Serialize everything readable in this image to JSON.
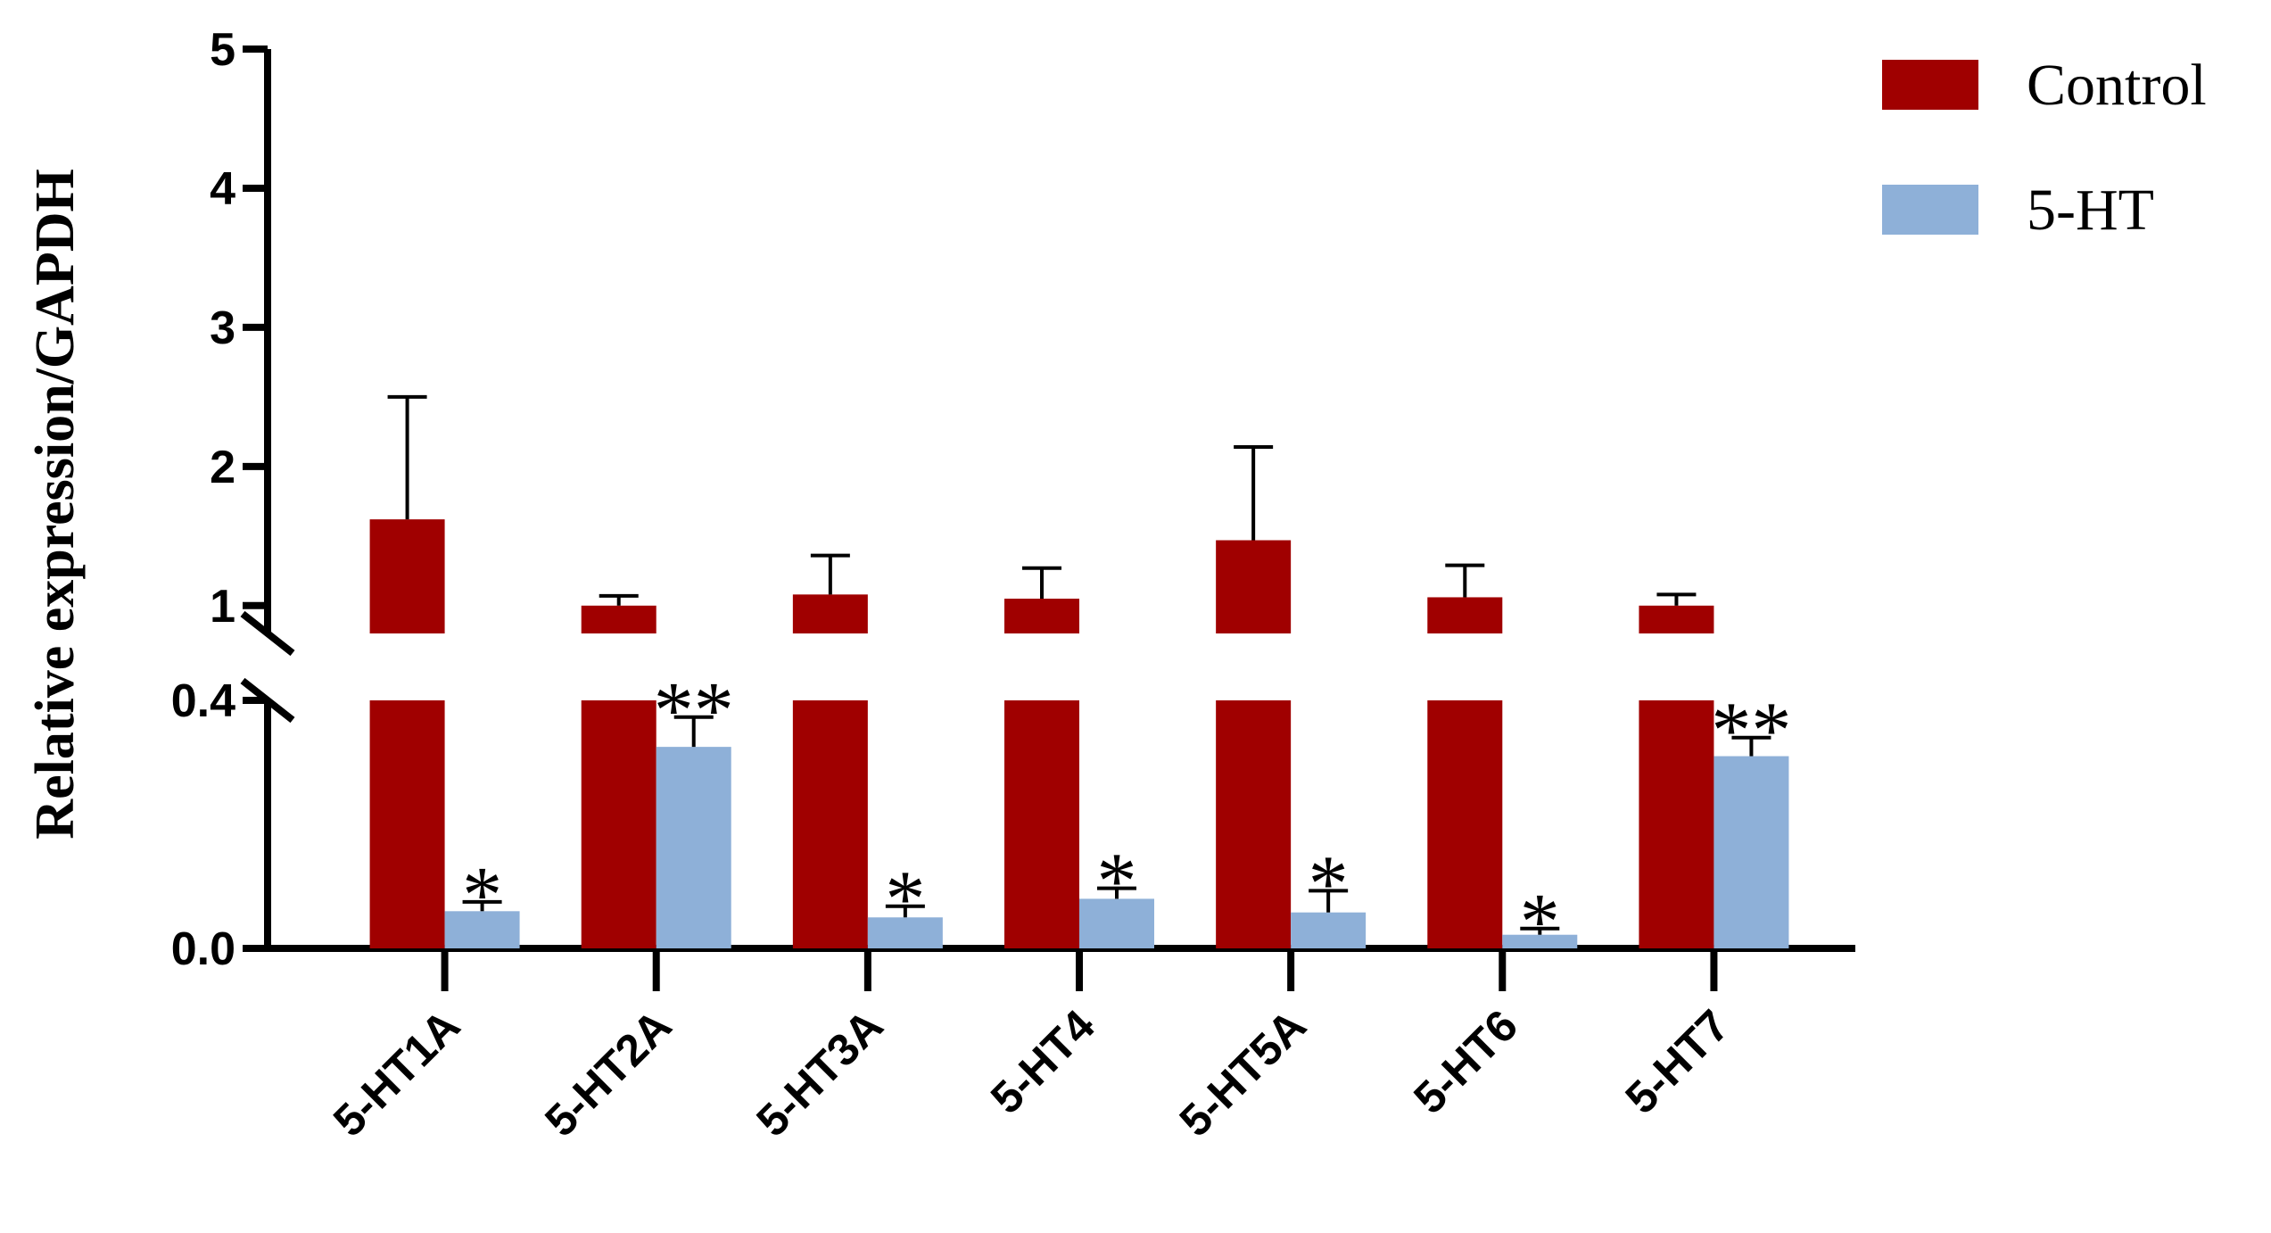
{
  "chart_data": {
    "type": "bar",
    "ylabel": "Relative expression/GAPDH",
    "axis_break": {
      "lower_range": [
        0,
        0.4
      ],
      "upper_range": [
        0.8,
        5
      ]
    },
    "lower_ticks": [
      "0.0",
      "0.4"
    ],
    "upper_ticks": [
      "1",
      "2",
      "3",
      "4",
      "5"
    ],
    "categories": [
      "5-HT1A",
      "5-HT2A",
      "5-HT3A",
      "5-HT4",
      "5-HT5A",
      "5-HT6",
      "5-HT7"
    ],
    "series": [
      {
        "name": "Control",
        "color": "#a00000",
        "values": [
          1.62,
          1.0,
          1.08,
          1.05,
          1.47,
          1.06,
          1.0
        ],
        "errors": [
          0.88,
          0.07,
          0.28,
          0.22,
          0.67,
          0.23,
          0.08
        ]
      },
      {
        "name": "5-HT",
        "color": "#8eb0d8",
        "values": [
          0.06,
          0.325,
          0.05,
          0.08,
          0.058,
          0.022,
          0.31
        ],
        "errors": [
          0.015,
          0.048,
          0.018,
          0.017,
          0.035,
          0.01,
          0.03
        ]
      }
    ],
    "significance": [
      "*",
      "**",
      "*",
      "*",
      "*",
      "*",
      "**"
    ],
    "legend_position": "top-right",
    "grid": false
  }
}
